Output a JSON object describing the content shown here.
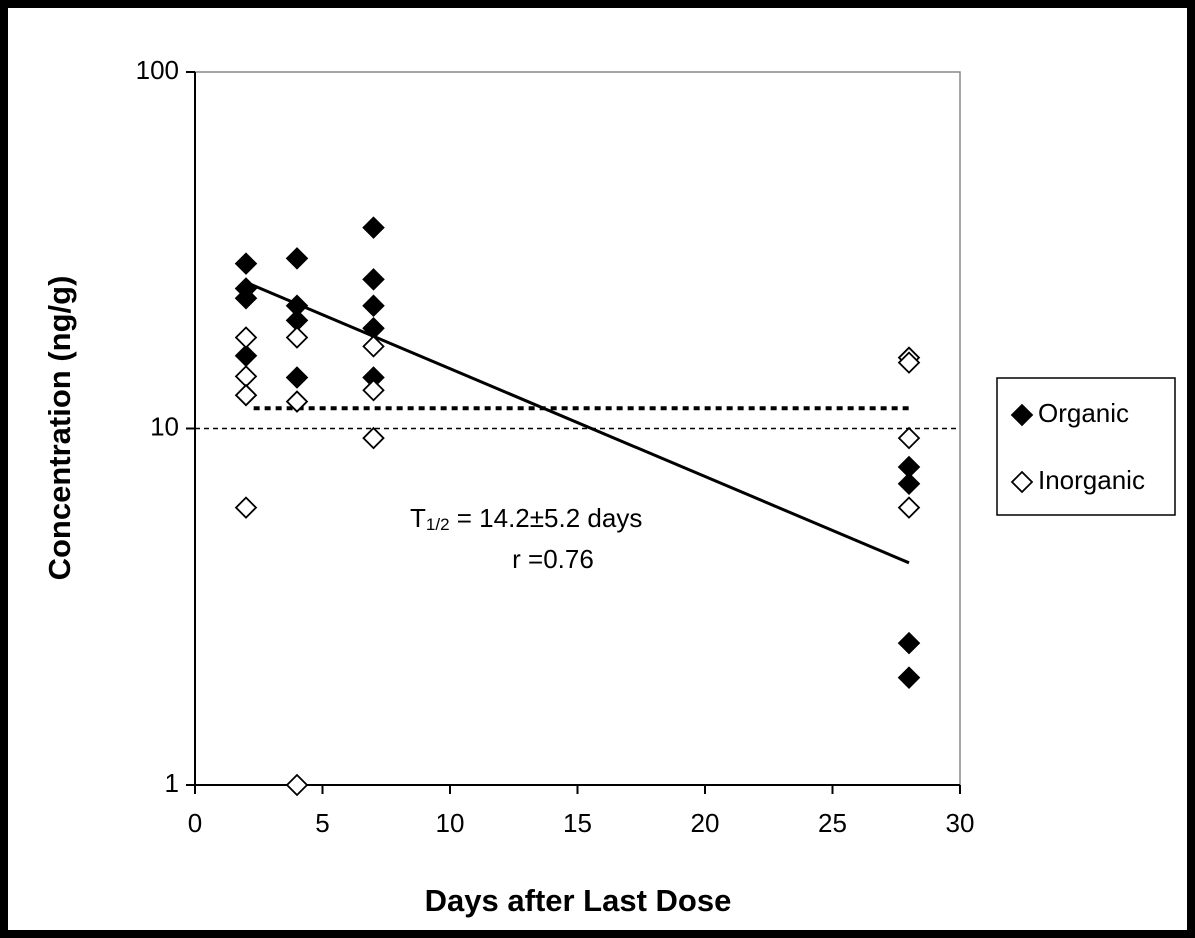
{
  "chart_data": {
    "type": "scatter",
    "xlabel": "Days after Last Dose",
    "ylabel": "Concentration (ng/g)",
    "xlim": [
      0,
      30
    ],
    "xticks": [
      0,
      5,
      10,
      15,
      20,
      25,
      30
    ],
    "ylim": [
      1,
      100
    ],
    "yticks": [
      1,
      10,
      100
    ],
    "log_y": true,
    "legend": "right",
    "series": [
      {
        "name": "Organic",
        "color": "#000000",
        "filled": true,
        "x": [
          2,
          2,
          2,
          2,
          4,
          4,
          4,
          4,
          7,
          7,
          7,
          7,
          7,
          28,
          28,
          28,
          28
        ],
        "values": [
          29.0,
          24.7,
          23.2,
          16.0,
          30.0,
          22.1,
          20.1,
          13.9,
          36.6,
          26.2,
          22.1,
          19.1,
          13.9,
          7.8,
          7.0,
          2.5,
          2.0
        ]
      },
      {
        "name": "Inorganic",
        "color": "#000000",
        "filled": false,
        "x": [
          2,
          2,
          2,
          2,
          4,
          4,
          4,
          7,
          7,
          7,
          28,
          28,
          28,
          28
        ],
        "values": [
          18.0,
          14.0,
          12.4,
          6.0,
          18.0,
          11.9,
          1.0,
          17.0,
          12.8,
          9.4,
          15.8,
          15.3,
          9.4,
          6.0
        ]
      }
    ],
    "lines": [
      {
        "style": "solid",
        "x": [
          2,
          28
        ],
        "values": [
          25.7,
          4.2
        ]
      },
      {
        "style": "dotted",
        "x": [
          2.3,
          28
        ],
        "values": [
          11.4,
          11.4
        ]
      },
      {
        "style": "dashed",
        "x": [
          0,
          30
        ],
        "values": [
          10,
          10
        ]
      }
    ],
    "annotations": [
      "T",
      "1/2",
      " = 14.2±5.2 days",
      "r =0.76"
    ]
  }
}
